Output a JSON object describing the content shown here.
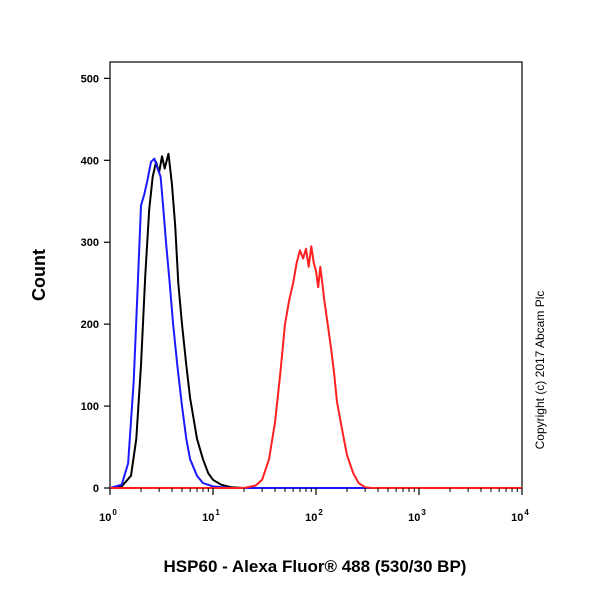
{
  "chart_data": {
    "type": "line",
    "title": "",
    "xlabel": "HSP60 - Alexa Fluor® 488 (530/30 BP)",
    "ylabel": "Count",
    "xscale": "log",
    "xlim": [
      1,
      10000
    ],
    "ylim": [
      0,
      520
    ],
    "x_ticks": [
      {
        "value": 1,
        "base": "10",
        "exp": "0"
      },
      {
        "value": 10,
        "base": "10",
        "exp": "1"
      },
      {
        "value": 100,
        "base": "10",
        "exp": "2"
      },
      {
        "value": 1000,
        "base": "10",
        "exp": "3"
      },
      {
        "value": 10000,
        "base": "10",
        "exp": "4"
      }
    ],
    "y_ticks": [
      {
        "value": 0,
        "label": "0"
      },
      {
        "value": 100,
        "label": "100"
      },
      {
        "value": 200,
        "label": "200"
      },
      {
        "value": 300,
        "label": "300"
      },
      {
        "value": 400,
        "label": "400"
      },
      {
        "value": 500,
        "label": "500"
      }
    ],
    "grid": false,
    "annotation": "Copyright (c) 2017 Abcam Plc",
    "series": [
      {
        "color": "#000000",
        "points": [
          [
            1,
            0
          ],
          [
            1.3,
            2
          ],
          [
            1.6,
            15
          ],
          [
            1.8,
            60
          ],
          [
            2.0,
            150
          ],
          [
            2.2,
            260
          ],
          [
            2.4,
            340
          ],
          [
            2.6,
            380
          ],
          [
            2.8,
            398
          ],
          [
            3.0,
            385
          ],
          [
            3.2,
            405
          ],
          [
            3.4,
            390
          ],
          [
            3.7,
            408
          ],
          [
            4.0,
            370
          ],
          [
            4.3,
            320
          ],
          [
            4.6,
            250
          ],
          [
            5.0,
            200
          ],
          [
            5.5,
            150
          ],
          [
            6.0,
            110
          ],
          [
            7.0,
            60
          ],
          [
            8.0,
            35
          ],
          [
            9.0,
            18
          ],
          [
            10,
            10
          ],
          [
            12,
            4
          ],
          [
            15,
            1
          ],
          [
            20,
            0
          ],
          [
            10000,
            0
          ]
        ]
      },
      {
        "color": "#1a1aff",
        "points": [
          [
            1,
            0
          ],
          [
            1.3,
            4
          ],
          [
            1.5,
            30
          ],
          [
            1.7,
            130
          ],
          [
            1.85,
            240
          ],
          [
            2.0,
            345
          ],
          [
            2.15,
            358
          ],
          [
            2.3,
            375
          ],
          [
            2.5,
            398
          ],
          [
            2.7,
            402
          ],
          [
            2.9,
            390
          ],
          [
            3.1,
            380
          ],
          [
            3.3,
            340
          ],
          [
            3.5,
            300
          ],
          [
            3.8,
            250
          ],
          [
            4.1,
            200
          ],
          [
            4.5,
            150
          ],
          [
            5.0,
            100
          ],
          [
            5.5,
            60
          ],
          [
            6.0,
            35
          ],
          [
            7.0,
            15
          ],
          [
            8.0,
            6
          ],
          [
            10,
            2
          ],
          [
            15,
            0
          ],
          [
            10000,
            0
          ]
        ]
      },
      {
        "color": "#ff2020",
        "points": [
          [
            1,
            0
          ],
          [
            20,
            0
          ],
          [
            26,
            3
          ],
          [
            30,
            10
          ],
          [
            35,
            35
          ],
          [
            40,
            80
          ],
          [
            45,
            140
          ],
          [
            50,
            200
          ],
          [
            55,
            230
          ],
          [
            60,
            250
          ],
          [
            65,
            275
          ],
          [
            70,
            290
          ],
          [
            75,
            280
          ],
          [
            80,
            292
          ],
          [
            85,
            270
          ],
          [
            90,
            295
          ],
          [
            95,
            275
          ],
          [
            100,
            265
          ],
          [
            105,
            245
          ],
          [
            110,
            270
          ],
          [
            115,
            250
          ],
          [
            120,
            230
          ],
          [
            130,
            200
          ],
          [
            140,
            170
          ],
          [
            150,
            140
          ],
          [
            160,
            105
          ],
          [
            180,
            70
          ],
          [
            200,
            40
          ],
          [
            230,
            18
          ],
          [
            260,
            6
          ],
          [
            300,
            1
          ],
          [
            350,
            0
          ],
          [
            10000,
            0
          ]
        ]
      }
    ]
  }
}
